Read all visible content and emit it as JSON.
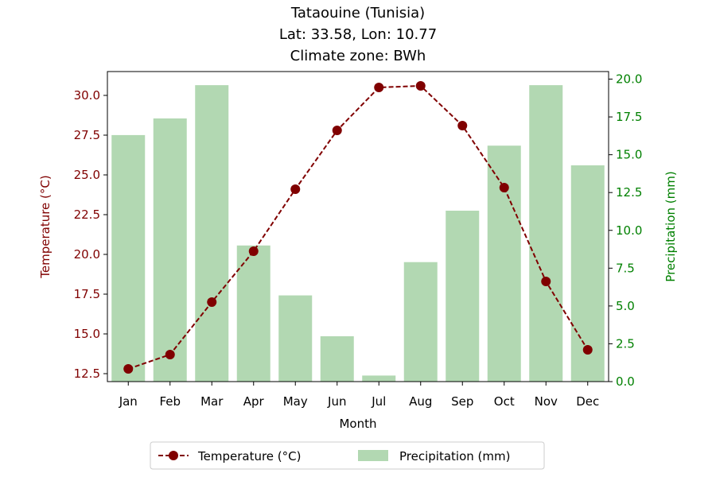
{
  "chart_data": {
    "type": "bar+line",
    "title_lines": [
      "Tataouine (Tunisia)",
      "Lat: 33.58, Lon: 10.77",
      "Climate zone: BWh"
    ],
    "xlabel": "Month",
    "ylabel_left": "Temperature (°C)",
    "ylabel_right": "Precipitation (mm)",
    "categories": [
      "Jan",
      "Feb",
      "Mar",
      "Apr",
      "May",
      "Jun",
      "Jul",
      "Aug",
      "Sep",
      "Oct",
      "Nov",
      "Dec"
    ],
    "temperature": {
      "name": "Temperature (°C)",
      "values": [
        12.8,
        13.7,
        17.0,
        20.2,
        24.1,
        27.8,
        30.5,
        30.6,
        28.1,
        24.2,
        18.3,
        14.0
      ],
      "ylim": [
        12.0,
        31.5
      ],
      "ticks": [
        12.5,
        15.0,
        17.5,
        20.0,
        22.5,
        25.0,
        27.5,
        30.0
      ],
      "color": "#800000"
    },
    "precipitation": {
      "name": "Precipitation (mm)",
      "values": [
        16.3,
        17.4,
        19.6,
        9.0,
        5.7,
        3.0,
        0.4,
        7.9,
        11.3,
        15.6,
        19.6,
        14.3
      ],
      "ylim": [
        0.0,
        20.5
      ],
      "ticks": [
        0.0,
        2.5,
        5.0,
        7.5,
        10.0,
        12.5,
        15.0,
        17.5,
        20.0
      ],
      "color": "#b2d8b2",
      "axis_color": "#008000"
    },
    "legend": {
      "placement": "bottom-center",
      "entries": [
        "Temperature (°C)",
        "Precipitation (mm)"
      ]
    },
    "grid": false
  }
}
